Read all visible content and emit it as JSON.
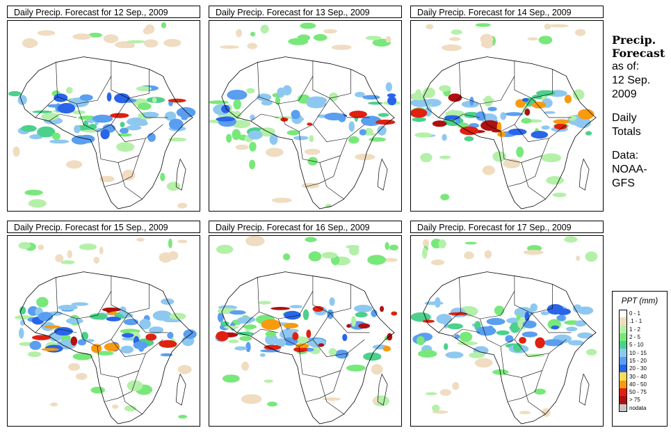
{
  "panels": [
    {
      "title": "Daily Precip. Forecast for  12 Sep., 2009",
      "intensity": "moderate"
    },
    {
      "title": "Daily Precip. Forecast for  13 Sep., 2009",
      "intensity": "moderate"
    },
    {
      "title": "Daily Precip. Forecast for  14 Sep., 2009",
      "intensity": "high"
    },
    {
      "title": "Daily Precip. Forecast for  15 Sep., 2009",
      "intensity": "high"
    },
    {
      "title": "Daily Precip. Forecast for  16 Sep., 2009",
      "intensity": "high"
    },
    {
      "title": "Daily Precip. Forecast for  17 Sep., 2009",
      "intensity": "moderate"
    }
  ],
  "sidebar": {
    "heading_line1": "Precip.",
    "heading_line2": "Forecast",
    "asof_line1": "as of:",
    "asof_line2": "12 Sep.",
    "asof_line3": "2009",
    "totals_line1": "Daily",
    "totals_line2": "Totals",
    "data_line1": "Data:",
    "data_line2": "NOAA-",
    "data_line3": "GFS"
  },
  "legend": {
    "title": "PPT (mm)",
    "items": [
      {
        "label": "0 - 1",
        "color": "#ffffff"
      },
      {
        "label": ".1 - 1",
        "color": "#f0dcc0"
      },
      {
        "label": "1 - 2",
        "color": "#b4f0a8"
      },
      {
        "label": "2 - 5",
        "color": "#78e87a"
      },
      {
        "label": "5 - 10",
        "color": "#4cd08c"
      },
      {
        "label": "10 - 15",
        "color": "#8ec8f0"
      },
      {
        "label": "15 - 20",
        "color": "#5a9ef0"
      },
      {
        "label": "20 - 30",
        "color": "#2a64e8"
      },
      {
        "label": "30 - 40",
        "color": "#f8dc58"
      },
      {
        "label": "40 - 50",
        "color": "#f89a10"
      },
      {
        "label": "50 - 75",
        "color": "#e02010"
      },
      {
        "label": "> 75",
        "color": "#b01010"
      },
      {
        "label": "nodata",
        "color": "#c8c8c8"
      }
    ]
  }
}
